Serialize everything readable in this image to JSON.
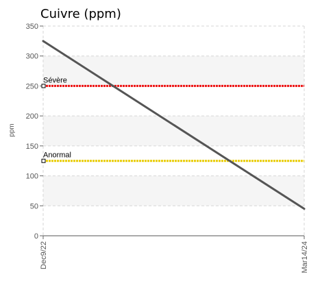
{
  "chart_data": {
    "type": "line",
    "title": "Cuivre (ppm)",
    "ylabel": "ppm",
    "xlabel": "",
    "x": [
      "Dec9/22",
      "Mar14/24"
    ],
    "ylim": [
      0,
      350
    ],
    "yticks": [
      0,
      50,
      100,
      150,
      200,
      250,
      300,
      350
    ],
    "grid": true,
    "series": [
      {
        "values": [
          325,
          45
        ],
        "color": "#555555"
      }
    ],
    "thresholds": [
      {
        "name": "Sévère",
        "value": 250,
        "color": "#ee1111"
      },
      {
        "name": "Anormal",
        "value": 125,
        "color": "#e8cc00"
      }
    ]
  }
}
